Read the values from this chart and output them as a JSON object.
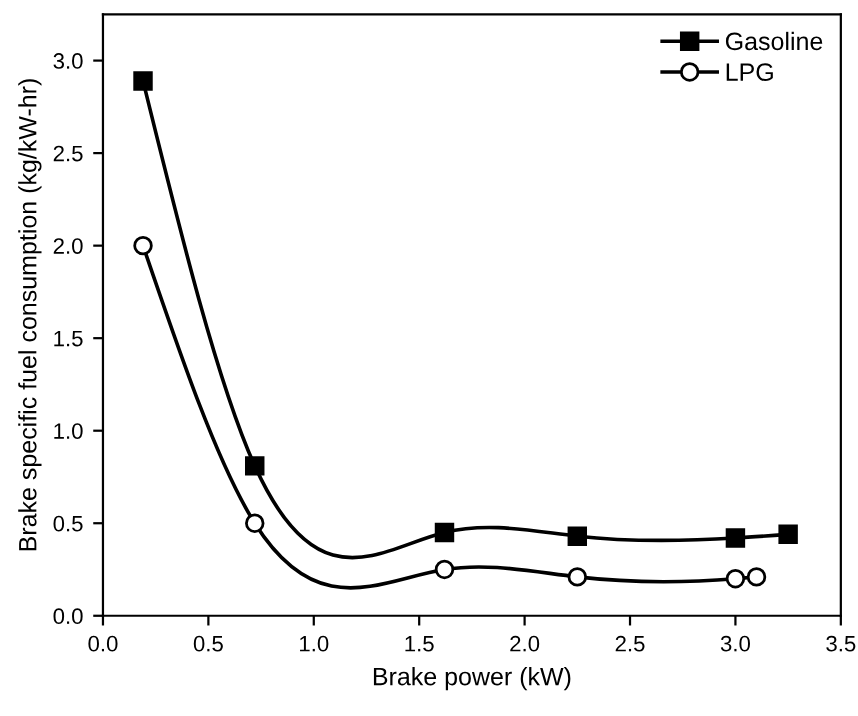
{
  "chart_data": {
    "type": "line",
    "xlabel": "Brake power (kW)",
    "ylabel": "Brake specific fuel consumption (kg/kW-hr)",
    "xlim": [
      0,
      3.5
    ],
    "ylim": [
      0,
      3.25
    ],
    "xticks": [
      {
        "value": 0,
        "label": "0.0"
      },
      {
        "value": 0.5,
        "label": "0.5"
      },
      {
        "value": 1,
        "label": "1.0"
      },
      {
        "value": 1.5,
        "label": "1.5"
      },
      {
        "value": 2,
        "label": "2.0"
      },
      {
        "value": 2.5,
        "label": "2.5"
      },
      {
        "value": 3,
        "label": "3.0"
      },
      {
        "value": 3.5,
        "label": "3.5"
      }
    ],
    "yticks": [
      {
        "value": 0,
        "label": "0.0"
      },
      {
        "value": 0.5,
        "label": "0.5"
      },
      {
        "value": 1,
        "label": "1.0"
      },
      {
        "value": 1.5,
        "label": "1.5"
      },
      {
        "value": 2,
        "label": "2.0"
      },
      {
        "value": 2.5,
        "label": "2.5"
      },
      {
        "value": 3,
        "label": "3.0"
      }
    ],
    "grid": false,
    "legend": "top right",
    "line_style": "solid",
    "series": [
      {
        "name": "Gasoline",
        "color": "#000000",
        "marker": "square",
        "x": [
          0.19,
          0.72,
          1.62,
          2.25,
          3.0,
          3.25
        ],
        "values": [
          2.89,
          0.81,
          0.45,
          0.43,
          0.42,
          0.44
        ]
      },
      {
        "name": "LPG",
        "color": "#000000",
        "marker": "circle",
        "x": [
          0.19,
          0.72,
          1.62,
          2.25,
          3.0,
          3.1
        ],
        "values": [
          2.0,
          0.5,
          0.25,
          0.21,
          0.2,
          0.21
        ]
      }
    ]
  }
}
